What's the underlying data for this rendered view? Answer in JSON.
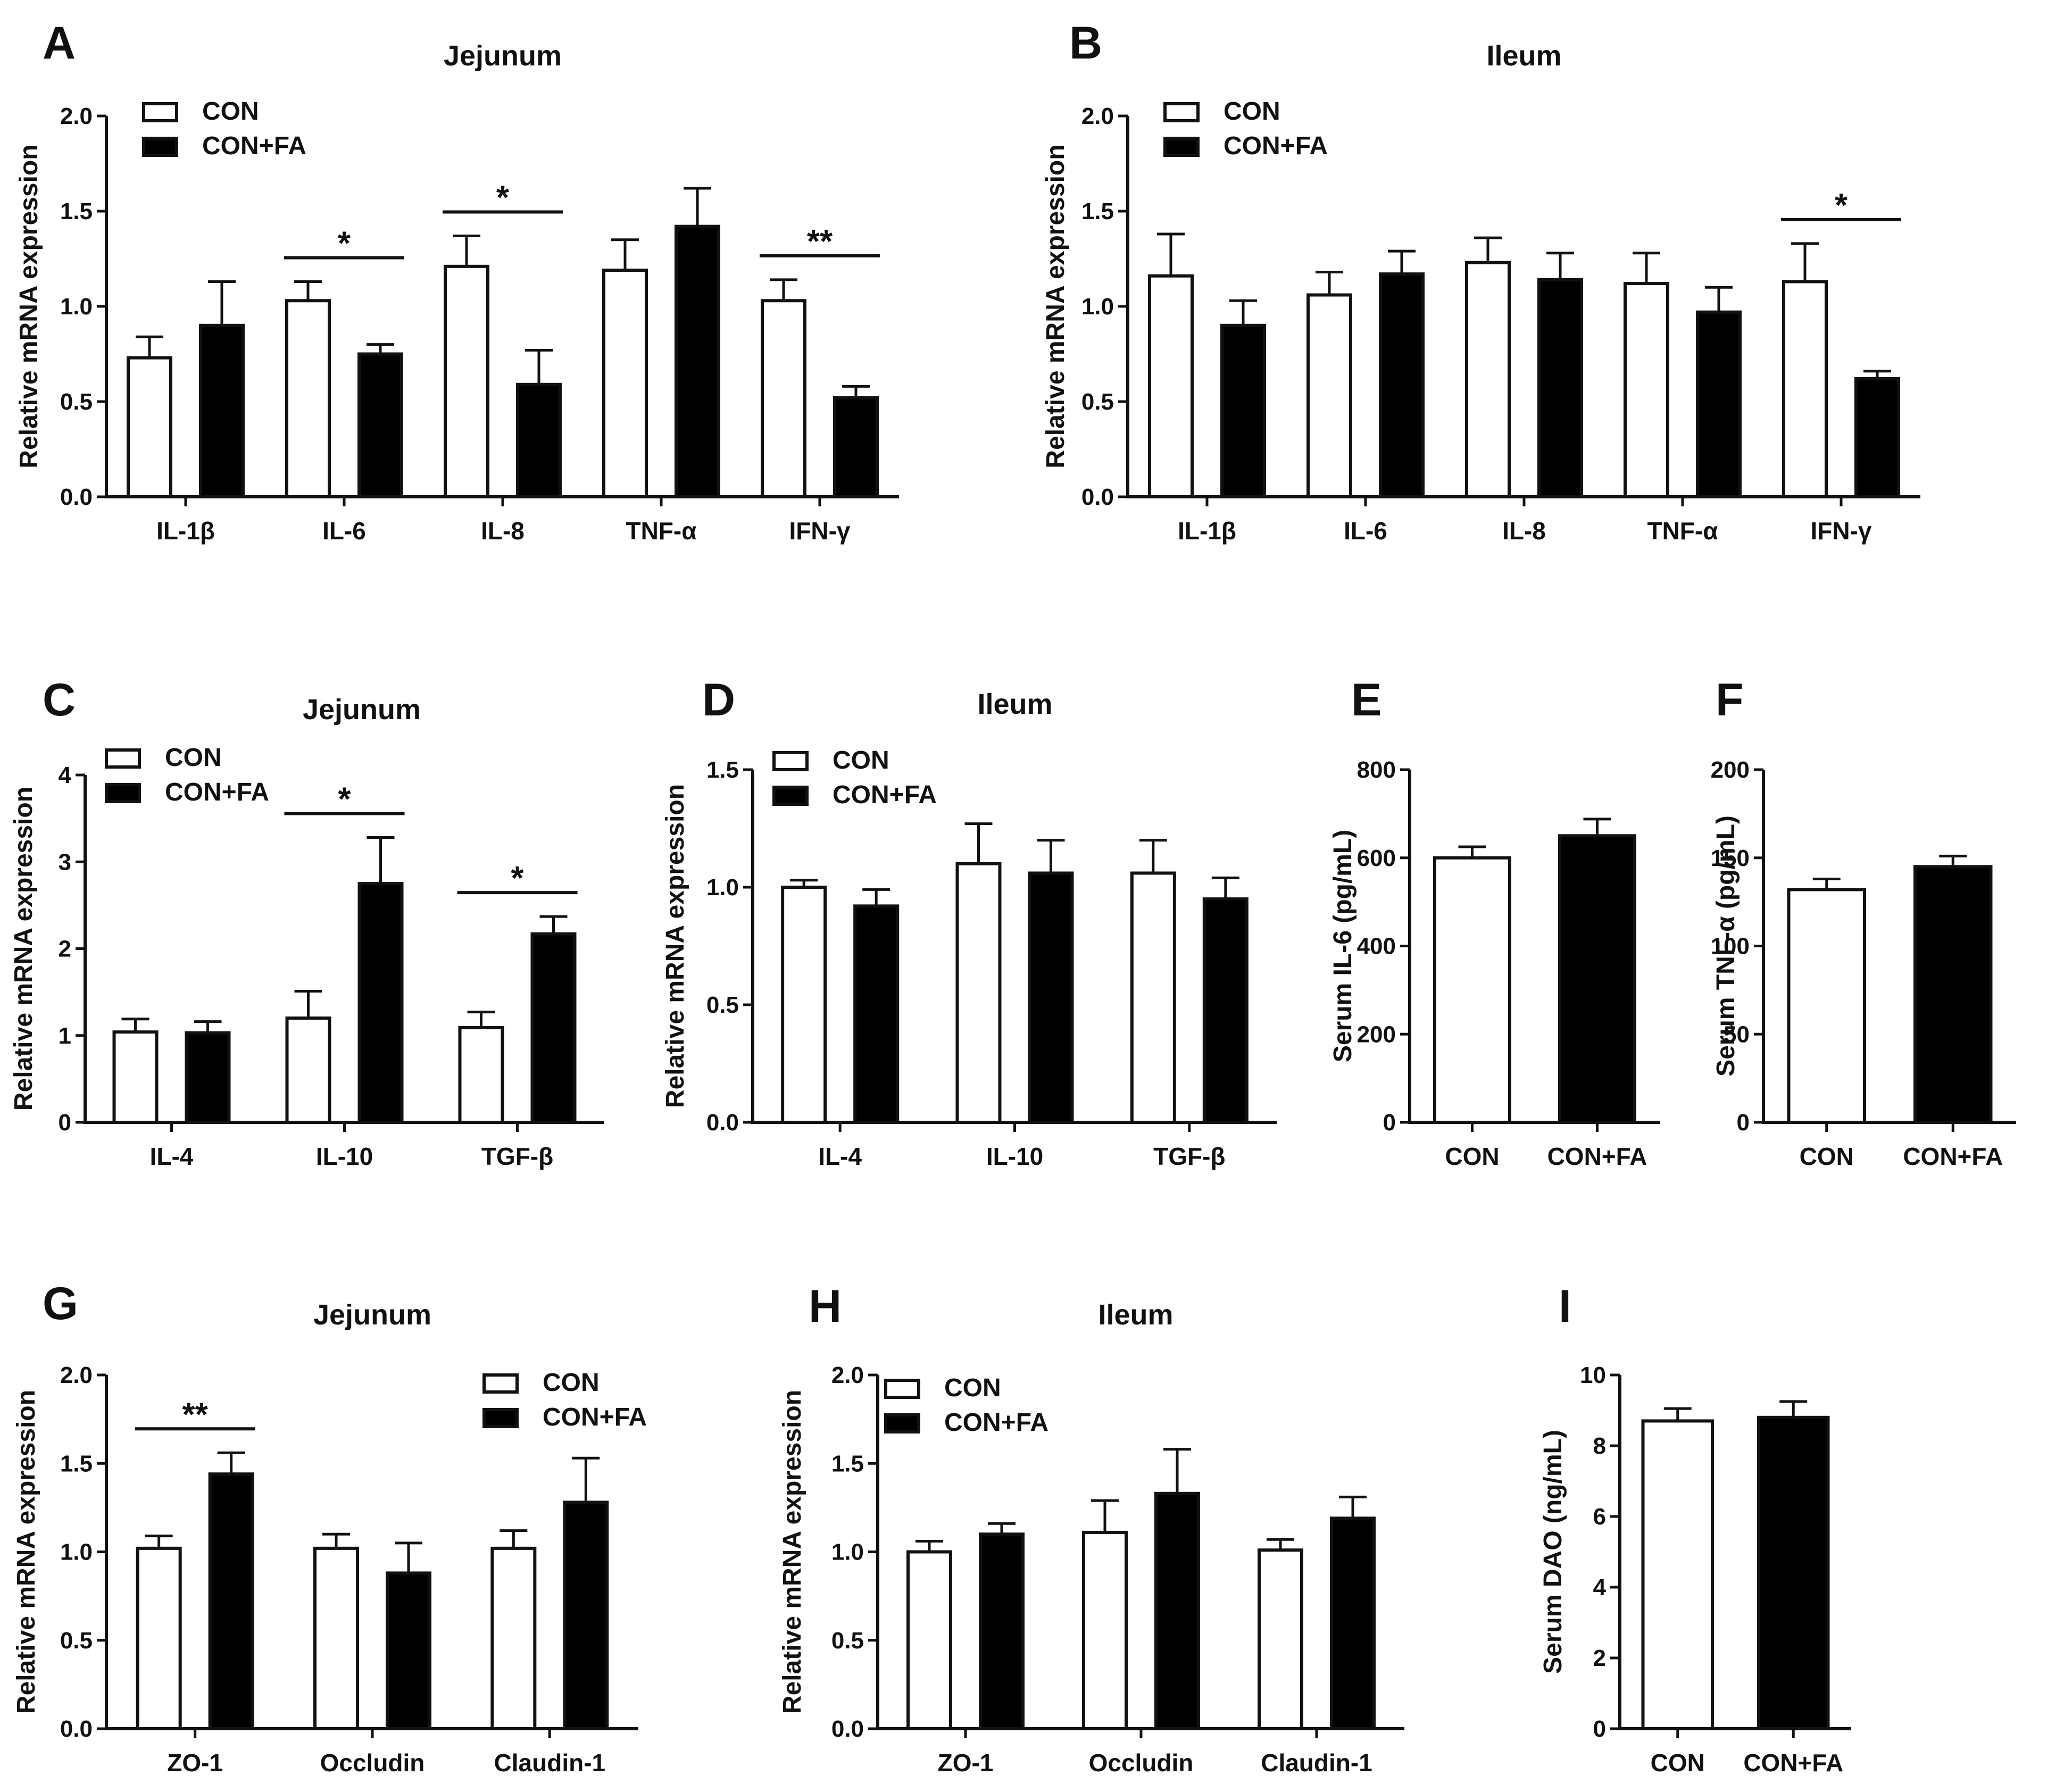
{
  "figure": {
    "background": "#ffffff",
    "ink": "#111111",
    "fill_con": "#ffffff",
    "fill_confa": "#000000"
  },
  "legend": {
    "con": "CON",
    "confa": "CON+FA"
  },
  "chart_data": [
    {
      "id": "A",
      "type": "bar",
      "title": "Jejunum",
      "ylabel": "Relative mRNA expression",
      "ylim": [
        0,
        2.0
      ],
      "yticks": [
        "0.0",
        "0.5",
        "1.0",
        "1.5",
        "2.0"
      ],
      "categories": [
        "IL-1β",
        "IL-6",
        "IL-8",
        "TNF-α",
        "IFN-γ"
      ],
      "legend_position": "top-left",
      "series": [
        {
          "name": "CON",
          "values": [
            0.73,
            1.03,
            1.21,
            1.19,
            1.03
          ],
          "errors": [
            0.11,
            0.1,
            0.16,
            0.16,
            0.11
          ]
        },
        {
          "name": "CON+FA",
          "values": [
            0.9,
            0.75,
            0.59,
            1.42,
            0.52
          ],
          "errors": [
            0.23,
            0.05,
            0.18,
            0.2,
            0.06
          ]
        }
      ],
      "significance": [
        {
          "category": "IL-6",
          "label": "*"
        },
        {
          "category": "IL-8",
          "label": "*"
        },
        {
          "category": "IFN-γ",
          "label": "**"
        }
      ]
    },
    {
      "id": "B",
      "type": "bar",
      "title": "Ileum",
      "ylabel": "Relative mRNA expression",
      "ylim": [
        0,
        2.0
      ],
      "yticks": [
        "0.0",
        "0.5",
        "1.0",
        "1.5",
        "2.0"
      ],
      "categories": [
        "IL-1β",
        "IL-6",
        "IL-8",
        "TNF-α",
        "IFN-γ"
      ],
      "legend_position": "top-left",
      "series": [
        {
          "name": "CON",
          "values": [
            1.16,
            1.06,
            1.23,
            1.12,
            1.13
          ],
          "errors": [
            0.22,
            0.12,
            0.13,
            0.16,
            0.2
          ]
        },
        {
          "name": "CON+FA",
          "values": [
            0.9,
            1.17,
            1.14,
            0.97,
            0.62
          ],
          "errors": [
            0.13,
            0.12,
            0.14,
            0.13,
            0.04
          ]
        }
      ],
      "significance": [
        {
          "category": "IFN-γ",
          "label": "*"
        }
      ]
    },
    {
      "id": "C",
      "type": "bar",
      "title": "Jejunum",
      "ylabel": "Relative mRNA expression",
      "ylim": [
        0,
        4
      ],
      "yticks": [
        "0",
        "1",
        "2",
        "3",
        "4"
      ],
      "categories": [
        "IL-4",
        "IL-10",
        "TGF-β"
      ],
      "legend_position": "top-left",
      "series": [
        {
          "name": "CON",
          "values": [
            1.04,
            1.2,
            1.09
          ],
          "errors": [
            0.15,
            0.31,
            0.18
          ]
        },
        {
          "name": "CON+FA",
          "values": [
            1.03,
            2.75,
            2.17
          ],
          "errors": [
            0.13,
            0.53,
            0.2
          ]
        }
      ],
      "significance": [
        {
          "category": "IL-10",
          "label": "*"
        },
        {
          "category": "TGF-β",
          "label": "*"
        }
      ]
    },
    {
      "id": "D",
      "type": "bar",
      "title": "Ileum",
      "ylabel": "Relative mRNA expression",
      "ylim": [
        0,
        1.5
      ],
      "yticks": [
        "0.0",
        "0.5",
        "1.0",
        "1.5"
      ],
      "categories": [
        "IL-4",
        "IL-10",
        "TGF-β"
      ],
      "legend_position": "top-left",
      "series": [
        {
          "name": "CON",
          "values": [
            1.0,
            1.1,
            1.06
          ],
          "errors": [
            0.03,
            0.17,
            0.14
          ]
        },
        {
          "name": "CON+FA",
          "values": [
            0.92,
            1.06,
            0.95
          ],
          "errors": [
            0.07,
            0.14,
            0.09
          ]
        }
      ],
      "significance": []
    },
    {
      "id": "E",
      "type": "bar",
      "title": "",
      "ylabel": "Serum IL-6 (pg/mL)",
      "ylim": [
        0,
        800
      ],
      "yticks": [
        "0",
        "200",
        "400",
        "600",
        "800"
      ],
      "categories": [
        "CON",
        "CON+FA"
      ],
      "legend_position": "none",
      "values": [
        600,
        650
      ],
      "errors": [
        25,
        38
      ],
      "significance": []
    },
    {
      "id": "F",
      "type": "bar",
      "title": "",
      "ylabel": "Serum TNF-α (pg/mL)",
      "ylim": [
        0,
        200
      ],
      "yticks": [
        "0",
        "50",
        "100",
        "150",
        "200"
      ],
      "categories": [
        "CON",
        "CON+FA"
      ],
      "legend_position": "none",
      "values": [
        132,
        145
      ],
      "errors": [
        6,
        6
      ],
      "significance": []
    },
    {
      "id": "G",
      "type": "bar",
      "title": "Jejunum",
      "ylabel": "Relative mRNA expression",
      "ylim": [
        0,
        2.0
      ],
      "yticks": [
        "0.0",
        "0.5",
        "1.0",
        "1.5",
        "2.0"
      ],
      "categories": [
        "ZO-1",
        "Occludin",
        "Claudin-1"
      ],
      "legend_position": "top-right",
      "series": [
        {
          "name": "CON",
          "values": [
            1.02,
            1.02,
            1.02
          ],
          "errors": [
            0.07,
            0.08,
            0.1
          ]
        },
        {
          "name": "CON+FA",
          "values": [
            1.44,
            0.88,
            1.28
          ],
          "errors": [
            0.12,
            0.17,
            0.25
          ]
        }
      ],
      "significance": [
        {
          "category": "ZO-1",
          "label": "**"
        }
      ]
    },
    {
      "id": "H",
      "type": "bar",
      "title": "Ileum",
      "ylabel": "Relative mRNA expression",
      "ylim": [
        0,
        2.0
      ],
      "yticks": [
        "0.0",
        "0.5",
        "1.0",
        "1.5",
        "2.0"
      ],
      "categories": [
        "ZO-1",
        "Occludin",
        "Claudin-1"
      ],
      "legend_position": "top-left",
      "series": [
        {
          "name": "CON",
          "values": [
            1.0,
            1.11,
            1.01
          ],
          "errors": [
            0.06,
            0.18,
            0.06
          ]
        },
        {
          "name": "CON+FA",
          "values": [
            1.1,
            1.33,
            1.19
          ],
          "errors": [
            0.06,
            0.25,
            0.12
          ]
        }
      ],
      "significance": []
    },
    {
      "id": "I",
      "type": "bar",
      "title": "",
      "ylabel": "Serum DAO (ng/mL)",
      "ylim": [
        0,
        10
      ],
      "yticks": [
        "0",
        "2",
        "4",
        "6",
        "8",
        "10"
      ],
      "categories": [
        "CON",
        "CON+FA"
      ],
      "legend_position": "none",
      "values": [
        8.7,
        8.8
      ],
      "errors": [
        0.35,
        0.45
      ],
      "significance": []
    }
  ]
}
